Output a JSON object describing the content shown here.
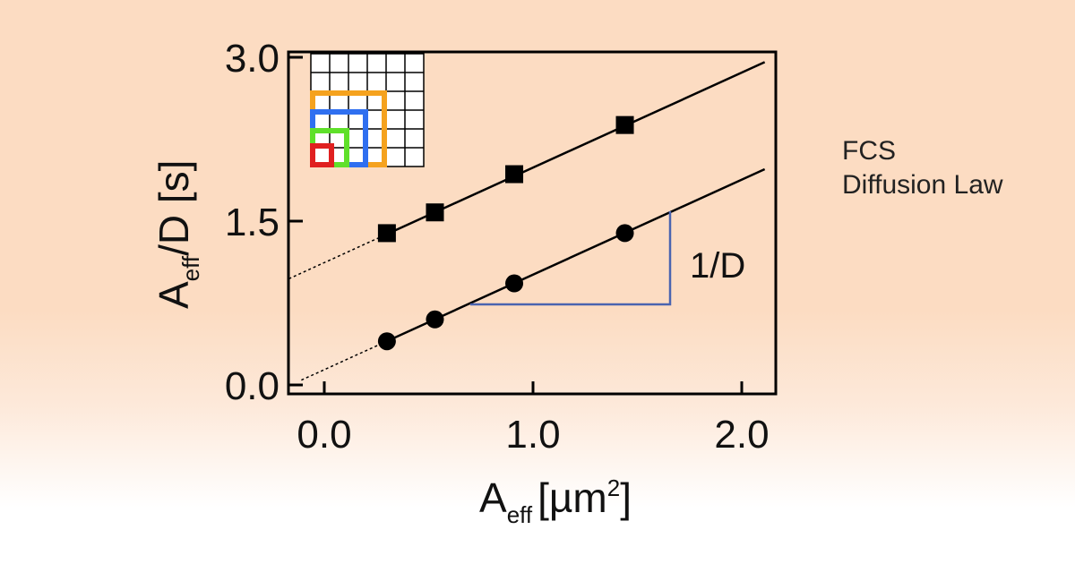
{
  "side_text": {
    "line1": "FCS",
    "line2": "Diffusion Law"
  },
  "chart_data": {
    "type": "scatter",
    "title": "",
    "xlabel": "A_eff [µm²]",
    "xlabel_main": "A",
    "xlabel_sub": "eff",
    "xlabel_unit_pre": "[µm",
    "xlabel_unit_sup": "2",
    "xlabel_unit_post": "]",
    "ylabel": "A_eff/D [s]",
    "ylabel_main": "A",
    "ylabel_sub": "eff",
    "ylabel_rest": "/D [s]",
    "xlim": [
      -0.17,
      2.16
    ],
    "ylim": [
      -0.08,
      3.05
    ],
    "xticks": [
      0.0,
      1.0,
      2.0
    ],
    "xtick_labels": [
      "0.0",
      "1.0",
      "2.0"
    ],
    "yticks": [
      0.0,
      1.5,
      3.0
    ],
    "ytick_labels": [
      "0.0",
      "1.5",
      "3.0"
    ],
    "grid": false,
    "series": [
      {
        "marker": "square",
        "x": [
          0.3,
          0.53,
          0.91,
          1.44
        ],
        "y": [
          1.39,
          1.58,
          1.93,
          2.38
        ],
        "fit": {
          "slope": 0.87,
          "intercept": 1.12
        }
      },
      {
        "marker": "circle",
        "x": [
          0.3,
          0.53,
          0.91,
          1.44
        ],
        "y": [
          0.4,
          0.6,
          0.93,
          1.39
        ],
        "fit": {
          "slope": 0.87,
          "intercept": 0.14
        }
      }
    ],
    "annotation": {
      "text": "1/D",
      "color": "#4a64b0"
    },
    "inset_colors": [
      "#f5a21e",
      "#2f6ff0",
      "#5fe02a",
      "#e02020"
    ]
  }
}
